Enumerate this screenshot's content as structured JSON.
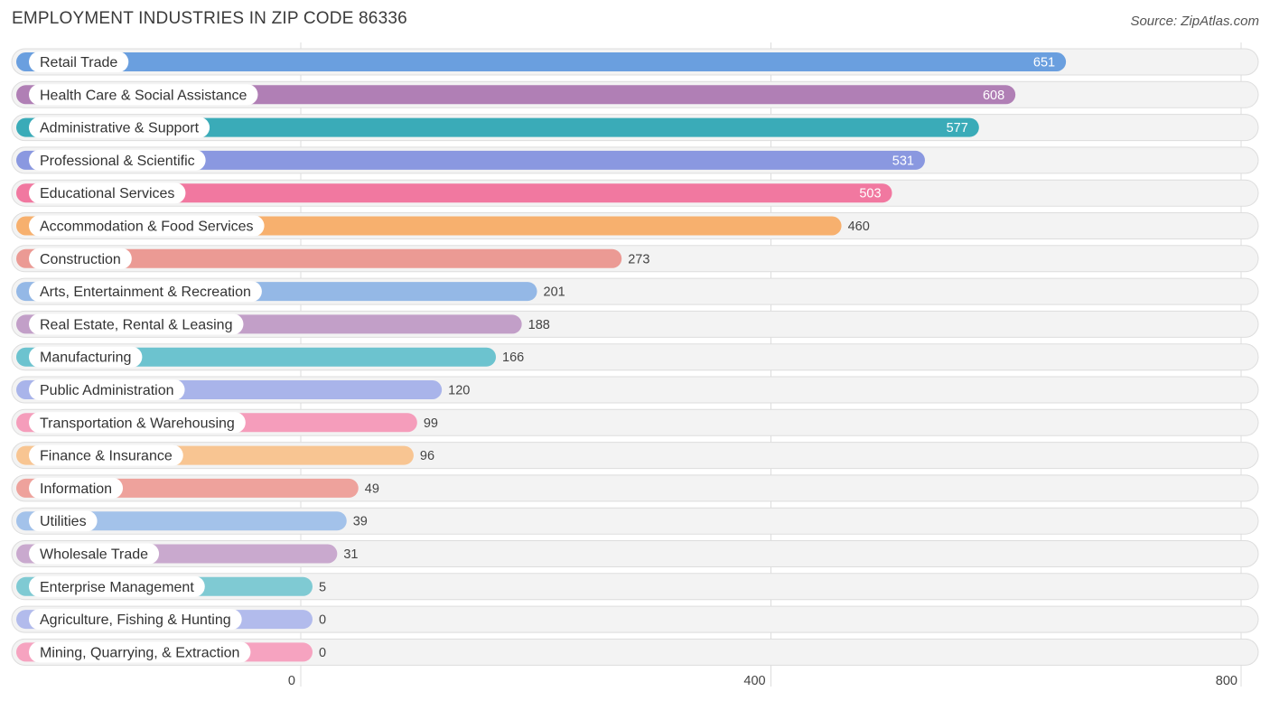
{
  "title": "EMPLOYMENT INDUSTRIES IN ZIP CODE 86336",
  "source": "Source: ZipAtlas.com",
  "chart_data": {
    "type": "bar",
    "orientation": "horizontal",
    "title": "EMPLOYMENT INDUSTRIES IN ZIP CODE 86336",
    "xlabel": "",
    "ylabel": "",
    "xlim": [
      0,
      800
    ],
    "xticks": [
      0,
      400,
      800
    ],
    "tick_labels": [
      "0",
      "400",
      "800"
    ],
    "grid": true,
    "categories": [
      "Retail Trade",
      "Health Care & Social Assistance",
      "Administrative & Support",
      "Professional & Scientific",
      "Educational Services",
      "Accommodation & Food Services",
      "Construction",
      "Arts, Entertainment & Recreation",
      "Real Estate, Rental & Leasing",
      "Manufacturing",
      "Public Administration",
      "Transportation & Warehousing",
      "Finance & Insurance",
      "Information",
      "Utilities",
      "Wholesale Trade",
      "Enterprise Management",
      "Agriculture, Fishing & Hunting",
      "Mining, Quarrying, & Extraction"
    ],
    "values": [
      651,
      608,
      577,
      531,
      503,
      460,
      273,
      201,
      188,
      166,
      120,
      99,
      96,
      49,
      39,
      31,
      5,
      0,
      0
    ],
    "value_labels": [
      "651",
      "608",
      "577",
      "531",
      "503",
      "460",
      "273",
      "201",
      "188",
      "166",
      "120",
      "99",
      "96",
      "49",
      "39",
      "31",
      "5",
      "0",
      "0"
    ],
    "colors": [
      "#6a9fdf",
      "#b07fb5",
      "#3aabb8",
      "#8a98e0",
      "#f178a0",
      "#f7b06e",
      "#eb9a94",
      "#94b8e6",
      "#c29fc8",
      "#6cc3cf",
      "#a9b4ea",
      "#f59dbb",
      "#f8c592",
      "#eea29c",
      "#a3c2ea",
      "#c9a9ce",
      "#7fcad3",
      "#b2bbec",
      "#f6a3c0"
    ],
    "value_label_inside": [
      true,
      true,
      true,
      true,
      true,
      false,
      false,
      false,
      false,
      false,
      false,
      false,
      false,
      false,
      false,
      false,
      false,
      false,
      false
    ]
  }
}
